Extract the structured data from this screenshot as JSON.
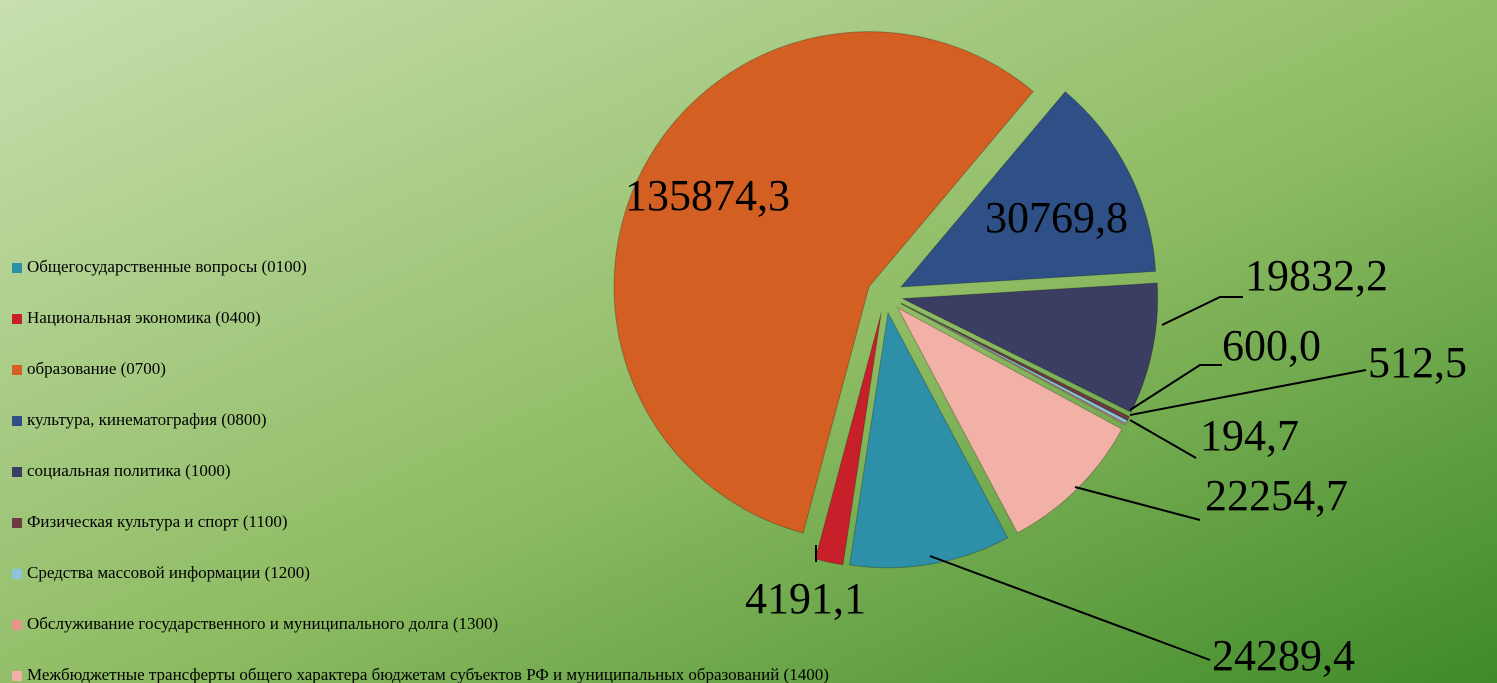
{
  "chart_data": {
    "type": "pie",
    "categories": [
      "Общегосударственные вопросы (0100)",
      "Национальная экономика (0400)",
      "образование (0700)",
      "культура, кинематография (0800)",
      "социальная политика (1000)",
      "Физическая культура и спорт (1100)",
      "Средства массовой информации (1200)",
      "Обслуживание государственного и муниципального долга (1300)",
      "Межбюджетные трансферты общего характера бюджетам субъектов РФ и муниципальных образований (1400)"
    ],
    "values": [
      24289.4,
      4191.1,
      135874.3,
      30769.8,
      19832.2,
      600.0,
      512.5,
      194.7,
      22254.7
    ],
    "value_labels": [
      "24289,4",
      "4191,1",
      "135874,3",
      "30769,8",
      "19832,2",
      "600,0",
      "512,5",
      "194,7",
      "22254,7"
    ],
    "colors": [
      "#2e8fa8",
      "#c8202a",
      "#d45f22",
      "#2f5086",
      "#3c3d63",
      "#6e3a40",
      "#8fc3dc",
      "#e8968a",
      "#f2b1a6"
    ],
    "legend": "left"
  }
}
